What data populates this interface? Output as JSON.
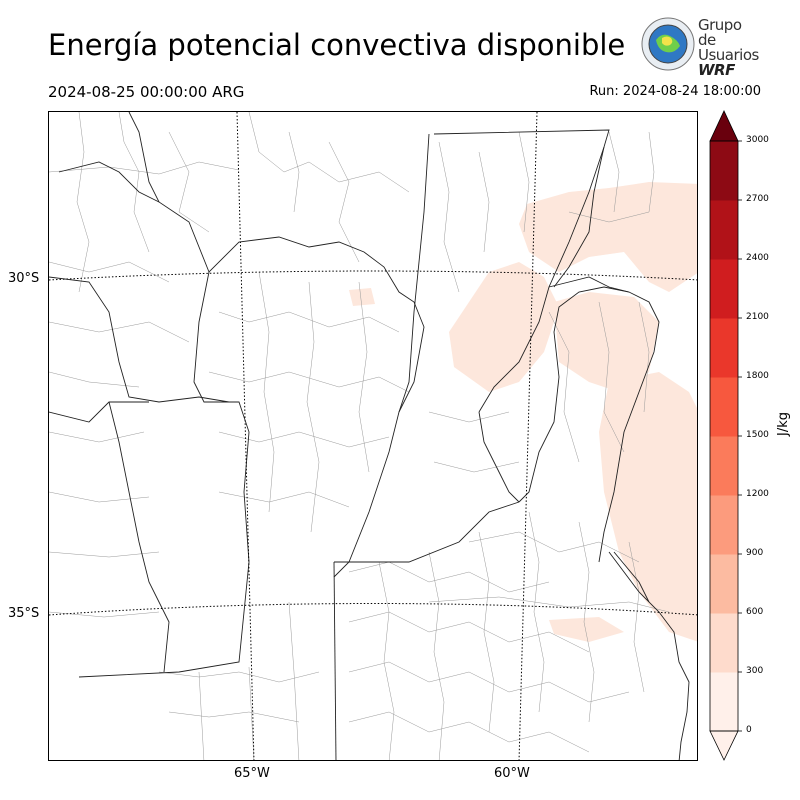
{
  "title": "Energía potencial convectiva disponible",
  "valid_time": "2024-08-25 00:00:00 ARG",
  "run_time": "Run: 2024-08-24 18:00:00",
  "logo": {
    "line1": "Grupo de",
    "line2": "Usuarios",
    "line3": "WRF"
  },
  "lat_labels": [
    "30°S",
    "35°S"
  ],
  "lon_labels": [
    "65°W",
    "60°W"
  ],
  "colorbar": {
    "unit": "J/kg",
    "ticks": [
      "0",
      "300",
      "600",
      "900",
      "1200",
      "1500",
      "1800",
      "2100",
      "2400",
      "2700",
      "3000"
    ],
    "colors": [
      "#fff0ea",
      "#fedbcc",
      "#fcbba1",
      "#fc9b7d",
      "#fb7b5b",
      "#f7583e",
      "#ea372b",
      "#d01d1f",
      "#b11218",
      "#8d0a14",
      "#69000d"
    ],
    "over_color": "#69000d"
  },
  "cape_color": "#fde7dc"
}
